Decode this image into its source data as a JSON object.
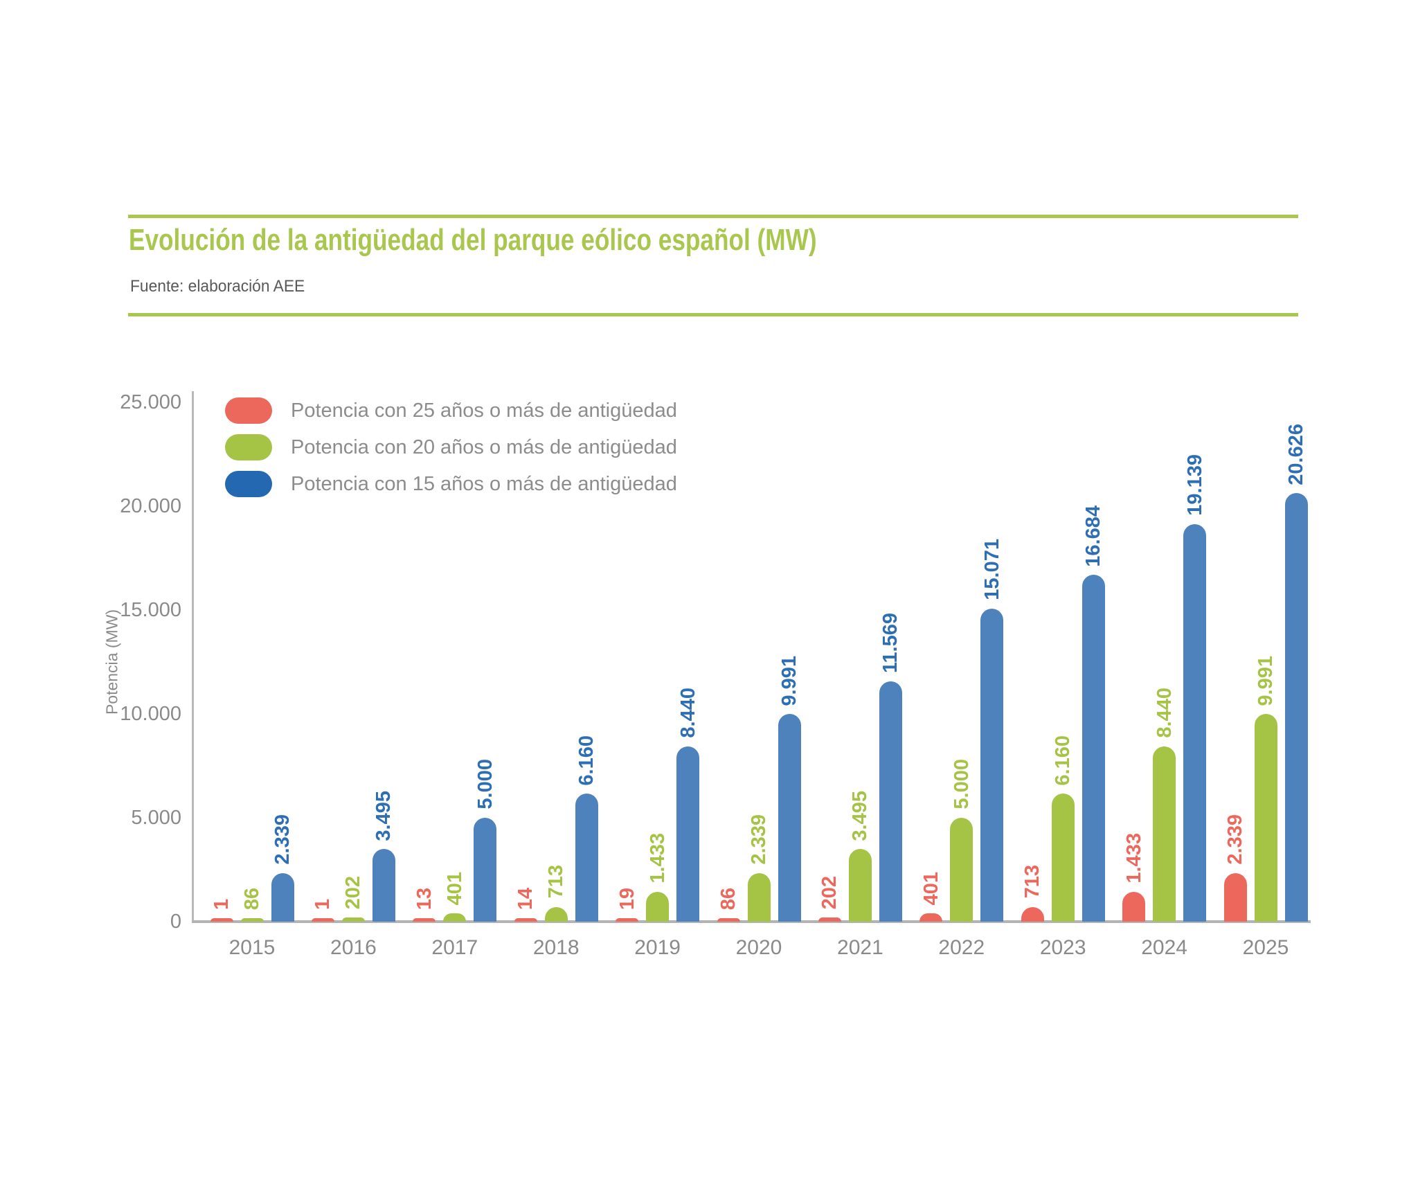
{
  "header": {
    "title": "Evolución de la antigüedad del parque eólico español (MW)",
    "subtitle": "Fuente: elaboración AEE"
  },
  "colors": {
    "accent_green": "#a9c74f",
    "series_25_bar": "#ec685c",
    "series_20_bar": "#a5c345",
    "series_15_bar": "#4d82bd",
    "series_15_label": "#2d6eb4",
    "legend_blue": "#2368b1",
    "axis_gray": "#b5b5b5",
    "text_gray": "#8a8a8a",
    "subtitle_gray": "#58595b"
  },
  "legend": [
    {
      "key": "25y",
      "label": "Potencia con 25 años o más de antigüedad",
      "color": "#ec685c"
    },
    {
      "key": "20y",
      "label": "Potencia con 20 años o más de antigüedad",
      "color": "#a5c345"
    },
    {
      "key": "15y",
      "label": "Potencia con 15 años o más de antigüedad",
      "color": "#2368b1"
    }
  ],
  "chart_data": {
    "type": "bar",
    "title": "Evolución de la antigüedad del parque eólico español (MW)",
    "source": "Fuente: elaboración AEE",
    "xlabel": "",
    "ylabel": "Potencia (MW)",
    "ylim": [
      0,
      25000
    ],
    "grid": false,
    "legend_position": "top-left",
    "yticks": [
      {
        "label": "25.000",
        "value": 25000
      },
      {
        "label": "20.000",
        "value": 20000
      },
      {
        "label": "15.000",
        "value": 15000
      },
      {
        "label": "10.000",
        "value": 10000
      },
      {
        "label": "5.000",
        "value": 5000
      },
      {
        "label": "0",
        "value": 0
      }
    ],
    "categories": [
      "2015",
      "2016",
      "2017",
      "2018",
      "2019",
      "2020",
      "2021",
      "2022",
      "2023",
      "2024",
      "2025"
    ],
    "series": [
      {
        "key": "25y",
        "name": "Potencia con 25 años o más de antigüedad",
        "color": "#ec685c",
        "label_color": "#ec685c",
        "values": [
          1,
          1,
          13,
          14,
          19,
          86,
          202,
          401,
          713,
          1433,
          2339
        ],
        "labels": [
          "1",
          "1",
          "13",
          "14",
          "19",
          "86",
          "202",
          "401",
          "713",
          "1.433",
          "2.339"
        ]
      },
      {
        "key": "20y",
        "name": "Potencia con 20 años o más de antigüedad",
        "color": "#a5c345",
        "label_color": "#a5c345",
        "values": [
          86,
          202,
          401,
          713,
          1433,
          2339,
          3495,
          5000,
          6160,
          8440,
          9991
        ],
        "labels": [
          "86",
          "202",
          "401",
          "713",
          "1.433",
          "2.339",
          "3.495",
          "5.000",
          "6.160",
          "8.440",
          "9.991"
        ]
      },
      {
        "key": "15y",
        "name": "Potencia con 15 años o más de antigüedad",
        "color": "#4d82bd",
        "label_color": "#2d6eb4",
        "values": [
          2339,
          3495,
          5000,
          6160,
          8440,
          9991,
          11569,
          15071,
          16684,
          19139,
          20626
        ],
        "labels": [
          "2.339",
          "3.495",
          "5.000",
          "6.160",
          "8.440",
          "9.991",
          "11.569",
          "15.071",
          "16.684",
          "19.139",
          "20.626"
        ]
      }
    ]
  }
}
